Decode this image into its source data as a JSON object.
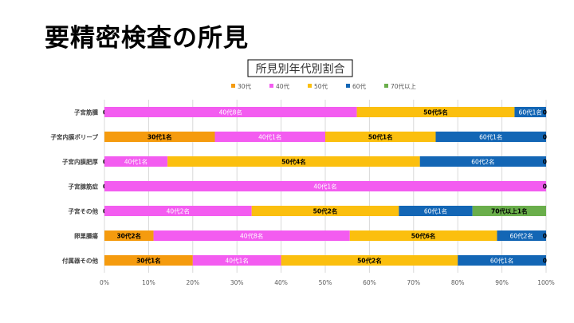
{
  "slide": {
    "title": "要精密検査の所見"
  },
  "chart_data": {
    "type": "bar",
    "orientation": "horizontal",
    "stacked": "percent",
    "title": "所見別年代別割合",
    "xlim": [
      0,
      100
    ],
    "x_ticks": [
      "0%",
      "10%",
      "20%",
      "30%",
      "40%",
      "50%",
      "60%",
      "70%",
      "80%",
      "90%",
      "100%"
    ],
    "grid": true,
    "legend_position": "top",
    "categories": [
      "子宮筋腫",
      "子宮内膜ポリープ",
      "子宮内膜肥厚",
      "子宮腺筋症",
      "子宮その他",
      "卵巣腫瘍",
      "付属器その他"
    ],
    "series": [
      {
        "name": "30代",
        "color": "#F59B0E",
        "values": [
          0,
          1,
          0,
          0,
          0,
          2,
          1
        ],
        "labels": [
          "0",
          "30代1名",
          "0",
          "0",
          "0",
          "30代2名",
          "30代1名"
        ]
      },
      {
        "name": "40代",
        "color": "#F35CF0",
        "values": [
          8,
          1,
          1,
          1,
          2,
          8,
          1
        ],
        "labels": [
          "40代8名",
          "40代1名",
          "40代1名",
          "40代1名",
          "40代2名",
          "40代8名",
          "40代1名"
        ]
      },
      {
        "name": "50代",
        "color": "#FBBF0E",
        "values": [
          5,
          1,
          4,
          0,
          2,
          6,
          2
        ],
        "labels": [
          "50代5名",
          "50代1名",
          "50代4名",
          "",
          "50代2名",
          "50代6名",
          "50代2名"
        ]
      },
      {
        "name": "60代",
        "color": "#1366B5",
        "values": [
          1,
          1,
          2,
          0,
          1,
          2,
          1
        ],
        "labels": [
          "60代1名",
          "60代1名",
          "60代2名",
          "",
          "60代1名",
          "60代2名",
          "60代1名"
        ]
      },
      {
        "name": "70代以上",
        "color": "#6AAE4B",
        "values": [
          0,
          0,
          0,
          0,
          1,
          0,
          0
        ],
        "labels": [
          "0",
          "0",
          "0",
          "0",
          "70代以上1名",
          "0",
          "0"
        ]
      }
    ]
  }
}
